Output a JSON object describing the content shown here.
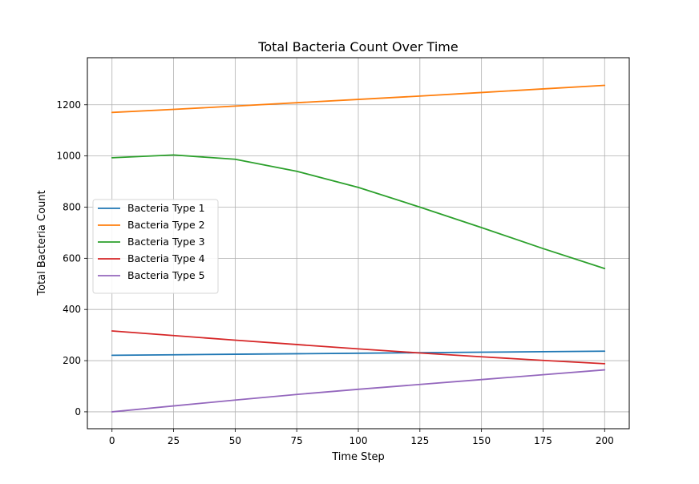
{
  "chart_data": {
    "type": "line",
    "title": "Total Bacteria Count Over Time",
    "xlabel": "Time Step",
    "ylabel": "Total Bacteria Count",
    "xlim": [
      -10,
      210
    ],
    "ylim": [
      -66,
      1384
    ],
    "x_ticks": [
      0,
      25,
      50,
      75,
      100,
      125,
      150,
      175,
      200
    ],
    "y_ticks": [
      0,
      200,
      400,
      600,
      800,
      1000,
      1200
    ],
    "grid": true,
    "legend_position": "center-left",
    "x": [
      0,
      25,
      50,
      75,
      100,
      125,
      150,
      175,
      200
    ],
    "series": [
      {
        "name": "Bacteria Type 1",
        "color": "#1f77b4",
        "values": [
          221,
          223,
          225,
          227,
          229,
          231,
          233,
          235,
          237
        ]
      },
      {
        "name": "Bacteria Type 2",
        "color": "#ff7f0e",
        "values": [
          1170,
          1182,
          1195,
          1208,
          1221,
          1234,
          1248,
          1262,
          1276
        ]
      },
      {
        "name": "Bacteria Type 3",
        "color": "#2ca02c",
        "values": [
          993,
          1004,
          987,
          940,
          877,
          800,
          720,
          638,
          560
        ]
      },
      {
        "name": "Bacteria Type 4",
        "color": "#d62728",
        "values": [
          316,
          298,
          280,
          263,
          246,
          230,
          215,
          201,
          188
        ]
      },
      {
        "name": "Bacteria Type 5",
        "color": "#9467bd",
        "values": [
          0,
          23,
          46,
          68,
          88,
          107,
          126,
          145,
          164
        ]
      }
    ]
  }
}
